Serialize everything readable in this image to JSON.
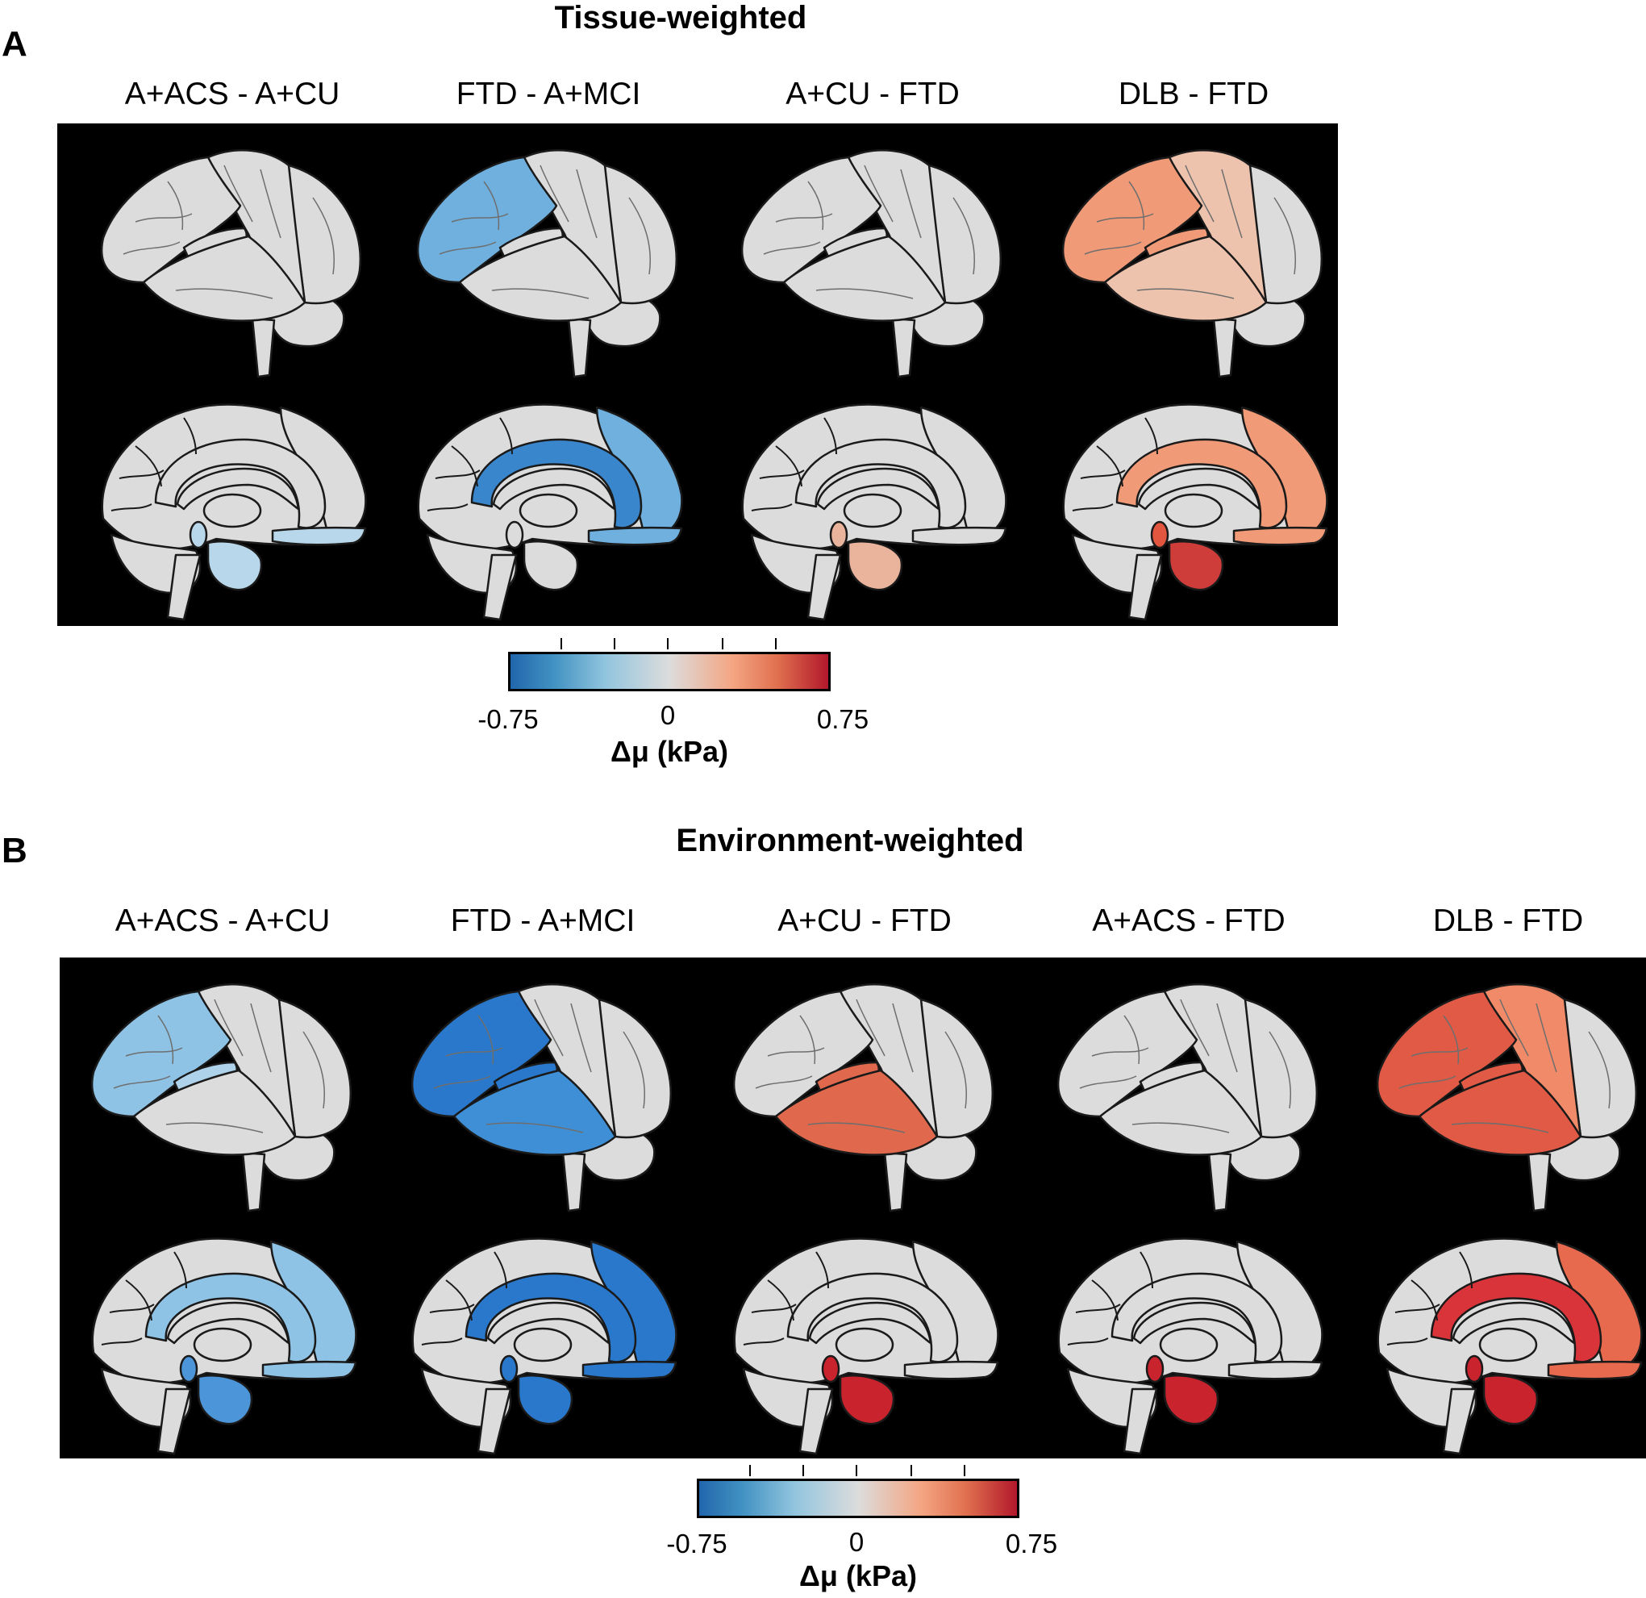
{
  "panel_a": {
    "letter": "A",
    "title": "Tissue-weighted",
    "columns": [
      {
        "label": "A+ACS - A+CU",
        "lateral": {
          "frontal": "#dcdcdc",
          "parietal": "#dcdcdc",
          "temporal": "#dcdcdc",
          "occipital": "#dcdcdc",
          "insula": "#dcdcdc"
        },
        "medial": {
          "cingulate": "#dcdcdc",
          "orbitofrontal": "#b9d7ea",
          "medialfrontal": "#dcdcdc",
          "hippo": "#b9d7ea",
          "thal": "#b9d7ea"
        }
      },
      {
        "label": "FTD - A+MCI",
        "lateral": {
          "frontal": "#6fb0de",
          "parietal": "#dcdcdc",
          "temporal": "#dcdcdc",
          "occipital": "#dcdcdc",
          "insula": "#dcdcdc"
        },
        "medial": {
          "cingulate": "#3a86cc",
          "orbitofrontal": "#6fb0de",
          "medialfrontal": "#6fb0de",
          "hippo": "#dcdcdc",
          "thal": "#dcdcdc"
        }
      },
      {
        "label": "A+CU - FTD",
        "lateral": {
          "frontal": "#dcdcdc",
          "parietal": "#dcdcdc",
          "temporal": "#dcdcdc",
          "occipital": "#dcdcdc",
          "insula": "#dcdcdc"
        },
        "medial": {
          "cingulate": "#dcdcdc",
          "orbitofrontal": "#dcdcdc",
          "medialfrontal": "#dcdcdc",
          "hippo": "#eab39c",
          "thal": "#eab39c"
        }
      },
      {
        "label": "DLB - FTD",
        "lateral": {
          "frontal": "#f09a78",
          "parietal": "#eec3ae",
          "temporal": "#eec3ae",
          "occipital": "#dcdcdc",
          "insula": "#f09a78"
        },
        "medial": {
          "cingulate": "#f09a78",
          "orbitofrontal": "#f09a78",
          "medialfrontal": "#f09a78",
          "hippo": "#cf3d3b",
          "thal": "#e2563f"
        }
      }
    ],
    "colorbar": {
      "min_label": "-0.75",
      "mid_label": "0",
      "max_label": "0.75",
      "title": "Δμ (kPa)"
    }
  },
  "panel_b": {
    "letter": "B",
    "title": "Environment-weighted",
    "columns": [
      {
        "label": "A+ACS - A+CU",
        "lateral": {
          "frontal": "#8ec3e6",
          "parietal": "#dcdcdc",
          "temporal": "#dcdcdc",
          "occipital": "#dcdcdc",
          "insula": "#aed2ea"
        },
        "medial": {
          "cingulate": "#8ec3e6",
          "orbitofrontal": "#8ec3e6",
          "medialfrontal": "#8ec3e6",
          "hippo": "#4b95d8",
          "thal": "#4b95d8"
        }
      },
      {
        "label": "FTD - A+MCI",
        "lateral": {
          "frontal": "#2a78cb",
          "parietal": "#dcdcdc",
          "temporal": "#3f8fd6",
          "occipital": "#dcdcdc",
          "insula": "#2a78cb"
        },
        "medial": {
          "cingulate": "#2a78cb",
          "orbitofrontal": "#2a78cb",
          "medialfrontal": "#2a78cb",
          "hippo": "#2a78cb",
          "thal": "#2a78cb"
        }
      },
      {
        "label": "A+CU - FTD",
        "lateral": {
          "frontal": "#dcdcdc",
          "parietal": "#dcdcdc",
          "temporal": "#e0684d",
          "occipital": "#dcdcdc",
          "insula": "#e0684d"
        },
        "medial": {
          "cingulate": "#dcdcdc",
          "orbitofrontal": "#dcdcdc",
          "medialfrontal": "#dcdcdc",
          "hippo": "#c9232d",
          "thal": "#c9232d"
        }
      },
      {
        "label": "A+ACS - FTD",
        "lateral": {
          "frontal": "#dcdcdc",
          "parietal": "#dcdcdc",
          "temporal": "#dcdcdc",
          "occipital": "#dcdcdc",
          "insula": "#dcdcdc"
        },
        "medial": {
          "cingulate": "#dcdcdc",
          "orbitofrontal": "#dcdcdc",
          "medialfrontal": "#dcdcdc",
          "hippo": "#c9232d",
          "thal": "#c9232d"
        }
      },
      {
        "label": "DLB - FTD",
        "lateral": {
          "frontal": "#e05a45",
          "parietal": "#f08a68",
          "temporal": "#e05a45",
          "occipital": "#dcdcdc",
          "insula": "#e05a45"
        },
        "medial": {
          "cingulate": "#d8343a",
          "orbitofrontal": "#e86a4e",
          "medialfrontal": "#e86a4e",
          "hippo": "#c9232d",
          "thal": "#c9232d"
        }
      }
    ],
    "colorbar": {
      "min_label": "-0.75",
      "mid_label": "0",
      "max_label": "0.75",
      "title": "Δμ (kPa)"
    }
  }
}
